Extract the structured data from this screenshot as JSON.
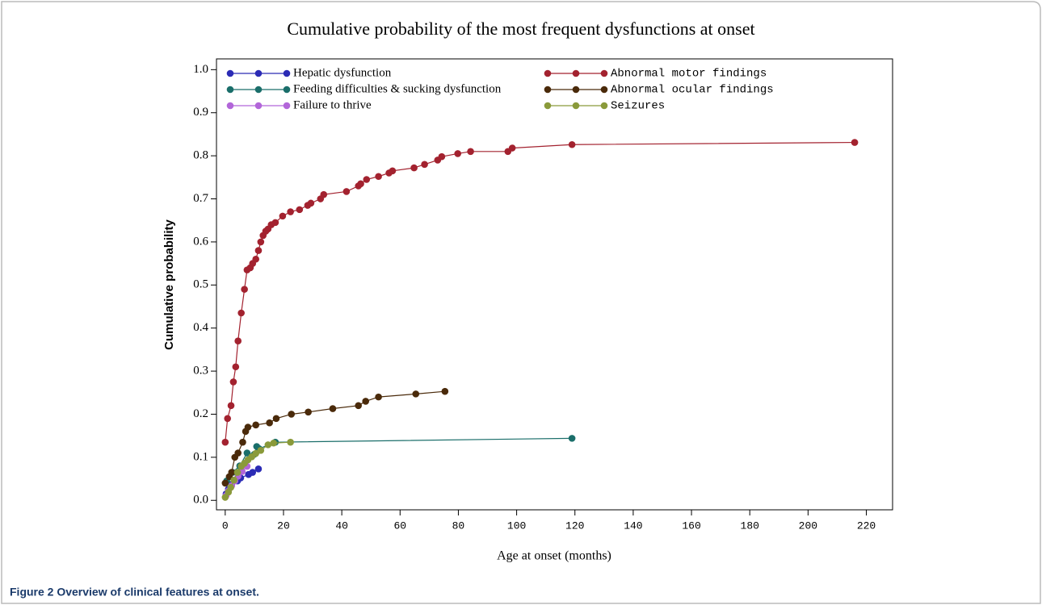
{
  "chart_data": {
    "type": "line",
    "title": "Cumulative probability of the most frequent dysfunctions at onset",
    "xlabel": "Age at onset (months)",
    "ylabel": "Cumulative probability",
    "caption": "Figure 2 Overview of clinical features at onset.",
    "xlim": [
      -3,
      229
    ],
    "ylim": [
      -0.022,
      1.025
    ],
    "xticks": [
      0,
      20,
      40,
      60,
      80,
      100,
      120,
      140,
      160,
      180,
      200,
      220
    ],
    "yticks": [
      {
        "value": 0,
        "label": "0.0"
      },
      {
        "value": 0.1,
        "label": "0.1"
      },
      {
        "value": 0.2,
        "label": "0.2"
      },
      {
        "value": 0.3,
        "label": "0.3"
      },
      {
        "value": 0.4,
        "label": "0.4"
      },
      {
        "value": 0.5,
        "label": "0.5"
      },
      {
        "value": 0.6,
        "label": "0.6"
      },
      {
        "value": 0.7,
        "label": "0.7"
      },
      {
        "value": 0.8,
        "label": "0.8"
      },
      {
        "value": 0.9,
        "label": "0.9"
      },
      {
        "value": 1,
        "label": "1.0"
      }
    ],
    "series": [
      {
        "name": "Hepatic dysfunction",
        "color": "#2b2bb5",
        "x": [
          0.3,
          1.1,
          2.2,
          4.2,
          5.3,
          8,
          9.4,
          11.4
        ],
        "values": [
          0.015,
          0.026,
          0.037,
          0.045,
          0.052,
          0.06,
          0.065,
          0.073
        ]
      },
      {
        "name": "Feeding difficulties & sucking dysfunction",
        "color": "#1a6e6a",
        "x": [
          0.5,
          2.5,
          5,
          7.5,
          10,
          10.8,
          11.6,
          17.2,
          119
        ],
        "values": [
          0.045,
          0.065,
          0.08,
          0.11,
          0.107,
          0.125,
          0.12,
          0.135,
          0.144
        ]
      },
      {
        "name": "Failure to thrive",
        "color": "#b266d9",
        "x": [
          0.3,
          1.1,
          2.2,
          3.3,
          4.4,
          5.8,
          7.5
        ],
        "values": [
          0.011,
          0.022,
          0.034,
          0.045,
          0.056,
          0.067,
          0.079
        ]
      },
      {
        "name": "Abnormal motor findings",
        "color": "#a3222f",
        "x": [
          0,
          0.8,
          2,
          2.8,
          3.6,
          4.4,
          5.5,
          6.6,
          7.5,
          8.6,
          9.4,
          10.5,
          11.4,
          12.2,
          13,
          13.9,
          14.7,
          15.8,
          17.2,
          19.7,
          22.4,
          25.5,
          28.3,
          29.4,
          32.7,
          33.8,
          41.6,
          45.7,
          46.5,
          48.5,
          52.6,
          56.2,
          57.4,
          64.8,
          68.4,
          72.9,
          74.3,
          79.8,
          84.2,
          97,
          98.5,
          119,
          216
        ],
        "values": [
          0.135,
          0.19,
          0.22,
          0.275,
          0.31,
          0.37,
          0.435,
          0.49,
          0.535,
          0.54,
          0.55,
          0.56,
          0.58,
          0.6,
          0.615,
          0.625,
          0.63,
          0.64,
          0.645,
          0.66,
          0.67,
          0.675,
          0.685,
          0.69,
          0.7,
          0.71,
          0.717,
          0.73,
          0.735,
          0.745,
          0.752,
          0.76,
          0.765,
          0.772,
          0.78,
          0.79,
          0.798,
          0.805,
          0.81,
          0.81,
          0.818,
          0.826,
          0.831
        ]
      },
      {
        "name": "Abnormal ocular findings",
        "color": "#4a2a0a",
        "x": [
          0,
          1.4,
          2.2,
          3.3,
          4.4,
          6,
          7,
          7.8,
          10.5,
          15.2,
          17.5,
          22.7,
          28.5,
          36.9,
          45.7,
          48.2,
          52.6,
          65.4,
          75.4
        ],
        "values": [
          0.04,
          0.055,
          0.065,
          0.1,
          0.11,
          0.135,
          0.16,
          0.17,
          0.175,
          0.18,
          0.19,
          0.2,
          0.205,
          0.213,
          0.22,
          0.23,
          0.24,
          0.247,
          0.253
        ]
      },
      {
        "name": "Seizures",
        "color": "#8a9a3a",
        "x": [
          0,
          1.1,
          1.9,
          3,
          4.2,
          5.5,
          6.6,
          7.8,
          9.1,
          10.5,
          12.2,
          14.7,
          16.6,
          22.4
        ],
        "values": [
          0.007,
          0.019,
          0.03,
          0.047,
          0.065,
          0.079,
          0.086,
          0.094,
          0.101,
          0.109,
          0.116,
          0.129,
          0.133,
          0.135
        ]
      }
    ]
  }
}
